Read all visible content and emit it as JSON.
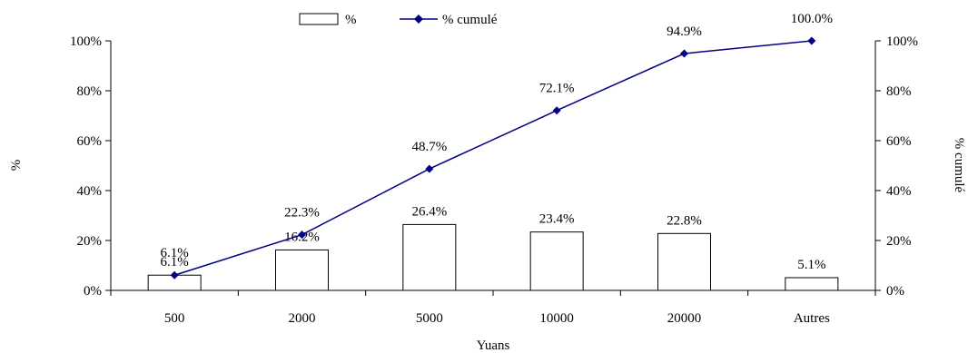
{
  "chart_data": {
    "type": "bar",
    "categories": [
      "500",
      "2000",
      "5000",
      "10000",
      "20000",
      "Autres"
    ],
    "xlabel": "Yuans",
    "ylabel": "%",
    "y2label": "% cumulé",
    "ylim": [
      0,
      100
    ],
    "y2lim": [
      0,
      100
    ],
    "yticks": [
      "0%",
      "20%",
      "40%",
      "60%",
      "80%",
      "100%"
    ],
    "y2ticks": [
      "0%",
      "20%",
      "40%",
      "60%",
      "80%",
      "100%"
    ],
    "legend_position": "top-center",
    "grid": false,
    "series": [
      {
        "name": "%",
        "kind": "bar",
        "values": [
          6.1,
          16.2,
          26.4,
          23.4,
          22.8,
          5.1
        ],
        "labels": [
          "6.1%",
          "16.2%",
          "26.4%",
          "23.4%",
          "22.8%",
          "5.1%"
        ]
      },
      {
        "name": "% cumulé",
        "kind": "line",
        "axis": "right",
        "color": "#000080",
        "values": [
          6.1,
          22.3,
          48.7,
          72.1,
          94.9,
          100.0
        ],
        "labels": [
          "6.1%",
          "22.3%",
          "48.7%",
          "72.1%",
          "94.9%",
          "100.0%"
        ]
      }
    ]
  }
}
